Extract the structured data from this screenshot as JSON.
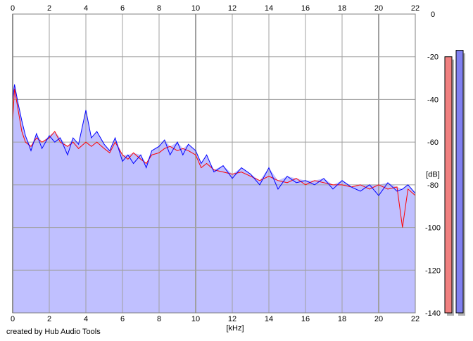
{
  "credit": "created by Hub Audio Tools",
  "chart_data": {
    "type": "line",
    "title": "",
    "xlabel": "[kHz]",
    "ylabel": "[dB]",
    "xlim": [
      0,
      22
    ],
    "ylim": [
      -140,
      0
    ],
    "x_ticks": [
      0,
      2,
      4,
      6,
      8,
      10,
      12,
      14,
      16,
      18,
      20,
      22
    ],
    "y_ticks": [
      0,
      -20,
      -40,
      -60,
      -80,
      -100,
      -120,
      -140
    ],
    "grid": true,
    "fill_color": "#c0c0ff",
    "series": [
      {
        "color": "#ff0000",
        "x": [
          0,
          0.1,
          0.3,
          0.5,
          0.7,
          1,
          1.3,
          1.6,
          2,
          2.3,
          2.6,
          3,
          3.3,
          3.6,
          4,
          4.3,
          4.6,
          5,
          5.3,
          5.6,
          6,
          6.3,
          6.6,
          7,
          7.3,
          7.6,
          8,
          8.3,
          8.6,
          9,
          9.3,
          9.6,
          10,
          10.3,
          10.6,
          11,
          11.5,
          12,
          12.5,
          13,
          13.5,
          14,
          14.5,
          15,
          15.5,
          16,
          16.5,
          17,
          17.5,
          18,
          18.5,
          19,
          19.5,
          20,
          20.5,
          21,
          21.3,
          21.6,
          22
        ],
        "y": [
          -50,
          -35,
          -45,
          -55,
          -60,
          -62,
          -58,
          -60,
          -58,
          -55,
          -60,
          -62,
          -60,
          -63,
          -60,
          -62,
          -60,
          -63,
          -65,
          -60,
          -66,
          -68,
          -65,
          -68,
          -70,
          -66,
          -65,
          -63,
          -62,
          -64,
          -63,
          -64,
          -66,
          -72,
          -70,
          -73,
          -74,
          -75,
          -74,
          -76,
          -78,
          -76,
          -78,
          -79,
          -77,
          -80,
          -78,
          -79,
          -80,
          -80,
          -81,
          -80,
          -82,
          -80,
          -82,
          -81,
          -100,
          -82,
          -85
        ]
      },
      {
        "color": "#0000ff",
        "x": [
          0,
          0.1,
          0.3,
          0.5,
          0.7,
          1,
          1.3,
          1.6,
          2,
          2.3,
          2.6,
          3,
          3.3,
          3.6,
          4,
          4.3,
          4.6,
          5,
          5.3,
          5.6,
          6,
          6.3,
          6.6,
          7,
          7.3,
          7.6,
          8,
          8.3,
          8.6,
          9,
          9.3,
          9.6,
          10,
          10.3,
          10.6,
          11,
          11.5,
          12,
          12.5,
          13,
          13.5,
          14,
          14.5,
          15,
          15.5,
          16,
          16.5,
          17,
          17.5,
          18,
          18.5,
          19,
          19.5,
          20,
          20.5,
          21,
          21.3,
          21.6,
          22
        ],
        "y": [
          -40,
          -33,
          -42,
          -50,
          -57,
          -64,
          -56,
          -63,
          -57,
          -60,
          -58,
          -66,
          -58,
          -61,
          -45,
          -58,
          -55,
          -61,
          -64,
          -58,
          -69,
          -66,
          -70,
          -66,
          -72,
          -64,
          -62,
          -59,
          -66,
          -60,
          -66,
          -61,
          -64,
          -70,
          -66,
          -74,
          -71,
          -77,
          -72,
          -75,
          -80,
          -72,
          -82,
          -76,
          -79,
          -78,
          -80,
          -77,
          -82,
          -78,
          -81,
          -83,
          -80,
          -85,
          -79,
          -83,
          -82,
          -80,
          -84
        ]
      }
    ],
    "level_meters": [
      {
        "color": "#f08080",
        "top_db": -20
      },
      {
        "color": "#8080f0",
        "top_db": -17
      }
    ]
  }
}
